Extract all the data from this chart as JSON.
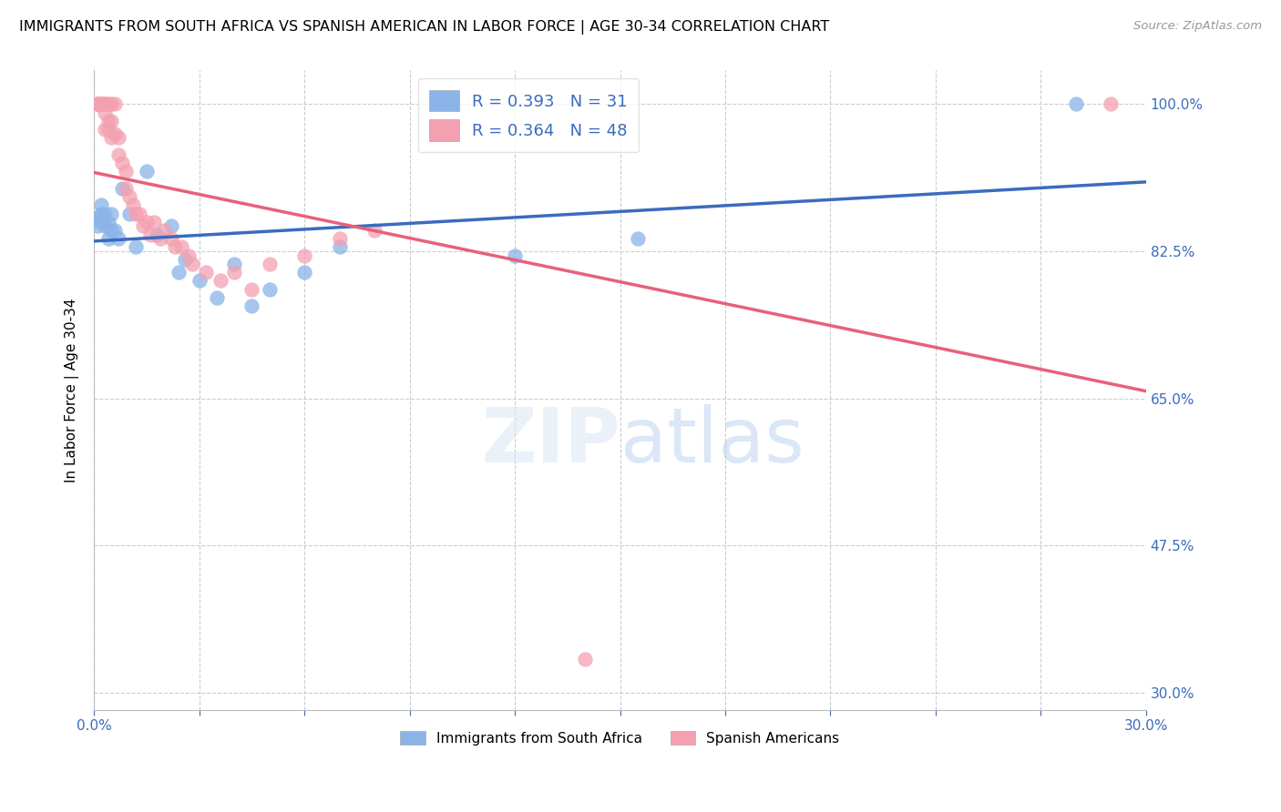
{
  "title": "IMMIGRANTS FROM SOUTH AFRICA VS SPANISH AMERICAN IN LABOR FORCE | AGE 30-34 CORRELATION CHART",
  "source": "Source: ZipAtlas.com",
  "ylabel": "In Labor Force | Age 30-34",
  "xlim": [
    0.0,
    0.3
  ],
  "ylim": [
    0.28,
    1.04
  ],
  "y_ticks": [
    1.0,
    0.825,
    0.65,
    0.475,
    0.3
  ],
  "y_tick_labels": [
    "100.0%",
    "82.5%",
    "65.0%",
    "47.5%",
    "30.0%"
  ],
  "x_ticks": [
    0.0,
    0.03,
    0.06,
    0.09,
    0.12,
    0.15,
    0.18,
    0.21,
    0.24,
    0.27,
    0.3
  ],
  "grid_color": "#cccccc",
  "blue_color": "#8ab4e8",
  "pink_color": "#f4a0b0",
  "line_blue": "#3a6bbf",
  "line_pink": "#e8607a",
  "legend_blue": "R = 0.393   N = 31",
  "legend_pink": "R = 0.364   N = 48",
  "legend1": "Immigrants from South Africa",
  "legend2": "Spanish Americans",
  "blue_x": [
    0.001,
    0.001,
    0.002,
    0.002,
    0.002,
    0.003,
    0.003,
    0.004,
    0.004,
    0.005,
    0.005,
    0.006,
    0.007,
    0.008,
    0.01,
    0.012,
    0.015,
    0.018,
    0.022,
    0.024,
    0.026,
    0.03,
    0.035,
    0.04,
    0.045,
    0.05,
    0.06,
    0.07,
    0.12,
    0.155,
    0.28
  ],
  "blue_y": [
    0.865,
    0.855,
    0.87,
    0.86,
    0.88,
    0.855,
    0.87,
    0.84,
    0.86,
    0.85,
    0.87,
    0.85,
    0.84,
    0.9,
    0.87,
    0.83,
    0.92,
    0.845,
    0.855,
    0.8,
    0.815,
    0.79,
    0.77,
    0.81,
    0.76,
    0.78,
    0.8,
    0.83,
    0.82,
    0.84,
    1.0
  ],
  "pink_x": [
    0.001,
    0.001,
    0.001,
    0.002,
    0.002,
    0.002,
    0.003,
    0.003,
    0.003,
    0.003,
    0.004,
    0.004,
    0.004,
    0.005,
    0.005,
    0.005,
    0.006,
    0.006,
    0.007,
    0.007,
    0.008,
    0.009,
    0.009,
    0.01,
    0.011,
    0.012,
    0.013,
    0.015,
    0.017,
    0.02,
    0.022,
    0.025,
    0.028,
    0.032,
    0.036,
    0.04,
    0.05,
    0.06,
    0.07,
    0.08,
    0.014,
    0.016,
    0.019,
    0.023,
    0.027,
    0.045,
    0.14,
    0.29
  ],
  "pink_y": [
    1.0,
    1.0,
    1.0,
    1.0,
    1.0,
    1.0,
    1.0,
    0.99,
    1.0,
    0.97,
    1.0,
    0.98,
    0.97,
    1.0,
    0.98,
    0.96,
    1.0,
    0.965,
    0.96,
    0.94,
    0.93,
    0.92,
    0.9,
    0.89,
    0.88,
    0.87,
    0.87,
    0.86,
    0.86,
    0.85,
    0.84,
    0.83,
    0.81,
    0.8,
    0.79,
    0.8,
    0.81,
    0.82,
    0.84,
    0.85,
    0.855,
    0.845,
    0.84,
    0.83,
    0.82,
    0.78,
    0.34,
    1.0
  ]
}
